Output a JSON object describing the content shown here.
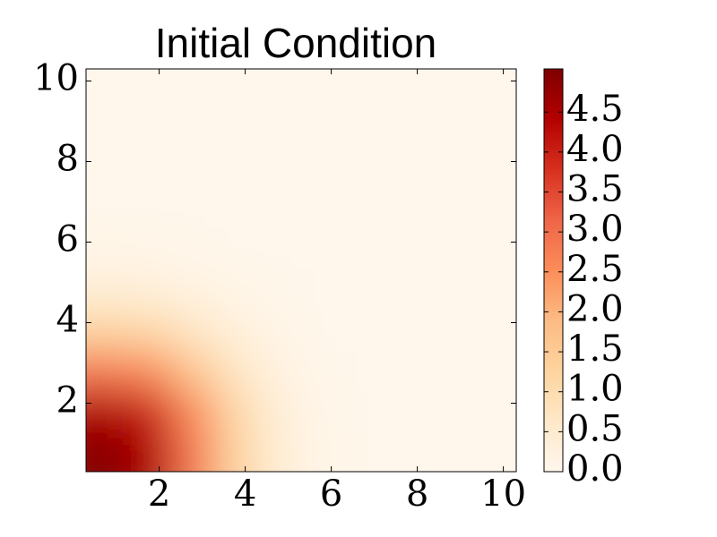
{
  "chart_data": {
    "type": "heatmap",
    "title": "Initial Condition",
    "x": [
      0.8,
      1.8,
      2.8,
      3.8,
      4.8,
      5.8,
      6.8,
      7.8,
      8.8,
      9.8
    ],
    "y": [
      0.8,
      1.8,
      2.8,
      3.8,
      4.8,
      5.8,
      6.8,
      7.8,
      8.8,
      9.8
    ],
    "z": [
      [
        4.93,
        4.43,
        2.79,
        1.23,
        0.38,
        0.08,
        0.01,
        0,
        0,
        0
      ],
      [
        4.43,
        3.98,
        2.5,
        1.1,
        0.34,
        0.07,
        0.01,
        0,
        0,
        0
      ],
      [
        2.79,
        2.5,
        1.57,
        0.69,
        0.21,
        0.04,
        0.01,
        0,
        0,
        0
      ],
      [
        1.23,
        1.1,
        0.69,
        0.31,
        0.09,
        0.02,
        0,
        0,
        0,
        0
      ],
      [
        0.38,
        0.34,
        0.21,
        0.09,
        0.03,
        0.01,
        0,
        0,
        0,
        0
      ],
      [
        0.08,
        0.07,
        0.04,
        0.02,
        0.01,
        0,
        0,
        0,
        0,
        0
      ],
      [
        0.01,
        0.01,
        0.01,
        0,
        0,
        0,
        0,
        0,
        0,
        0
      ],
      [
        0,
        0,
        0,
        0,
        0,
        0,
        0,
        0,
        0,
        0
      ],
      [
        0,
        0,
        0,
        0,
        0,
        0,
        0,
        0,
        0,
        0
      ],
      [
        0,
        0,
        0,
        0,
        0,
        0,
        0,
        0,
        0,
        0
      ]
    ],
    "xlim": [
      0.3,
      10.3
    ],
    "ylim": [
      0.3,
      10.3
    ],
    "xticks": [
      2,
      4,
      6,
      8,
      10
    ],
    "yticks": [
      2,
      4,
      6,
      8,
      10
    ],
    "clim": [
      0,
      5.04
    ],
    "cticks": [
      {
        "value": 0,
        "label": "0.0"
      },
      {
        "value": 0.5,
        "label": "0.5"
      },
      {
        "value": 1,
        "label": "1.0"
      },
      {
        "value": 1.5,
        "label": "1.5"
      },
      {
        "value": 2,
        "label": "2.0"
      },
      {
        "value": 2.5,
        "label": "2.5"
      },
      {
        "value": 3,
        "label": "3.0"
      },
      {
        "value": 3.5,
        "label": "3.5"
      },
      {
        "value": 4,
        "label": "4.0"
      },
      {
        "value": 4.5,
        "label": "4.5"
      }
    ],
    "colormap": [
      "#fff7ec",
      "#fee8c8",
      "#fdd49e",
      "#fdbb84",
      "#fc8d59",
      "#ef6548",
      "#d7301f",
      "#b30000",
      "#7f0000"
    ]
  }
}
